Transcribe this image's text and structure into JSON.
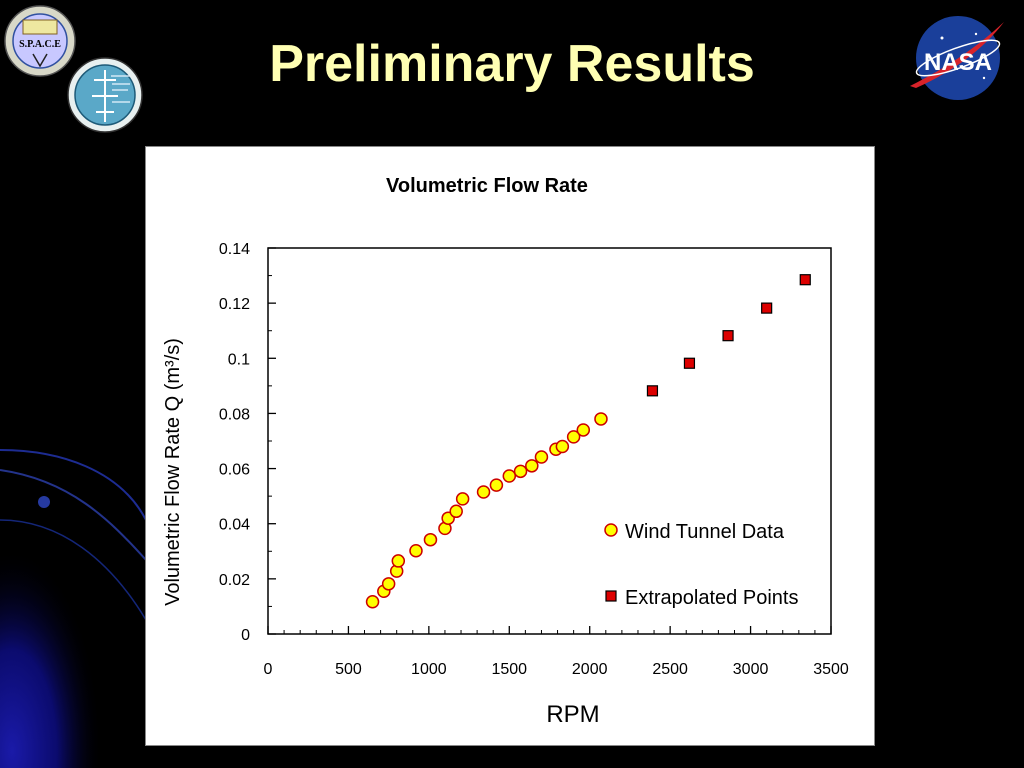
{
  "slide": {
    "title": "Preliminary Results",
    "logos": {
      "space_logo_text": "S.P.A.C.E",
      "nasa_logo_text": "NASA"
    }
  },
  "colors": {
    "background": "#000000",
    "title": "#ffffb3",
    "wind_tunnel_fill": "#ffff00",
    "wind_tunnel_stroke": "#cc0000",
    "extrapolated_fill": "#dd0000",
    "extrapolated_stroke": "#000000"
  },
  "chart_data": {
    "type": "scatter",
    "title": "Volumetric Flow Rate",
    "xlabel": "RPM",
    "ylabel": "Volumetric Flow Rate Q (m³/s)",
    "xlim": [
      0,
      3500
    ],
    "ylim": [
      0,
      0.14
    ],
    "x_ticks": [
      "0",
      "500",
      "1000",
      "1500",
      "2000",
      "2500",
      "3000",
      "3500"
    ],
    "y_ticks": [
      "0",
      "0.02",
      "0.04",
      "0.06",
      "0.08",
      "0.1",
      "0.12",
      "0.14"
    ],
    "grid": false,
    "legend_position": "lower-right",
    "series": [
      {
        "name": "Wind Tunnel Data",
        "marker": "circle",
        "points": [
          [
            650,
            0.0117
          ],
          [
            720,
            0.0155
          ],
          [
            750,
            0.0182
          ],
          [
            800,
            0.0228
          ],
          [
            810,
            0.0265
          ],
          [
            920,
            0.0302
          ],
          [
            1010,
            0.0342
          ],
          [
            1100,
            0.0383
          ],
          [
            1120,
            0.042
          ],
          [
            1170,
            0.0445
          ],
          [
            1210,
            0.049
          ],
          [
            1340,
            0.0515
          ],
          [
            1420,
            0.054
          ],
          [
            1500,
            0.0573
          ],
          [
            1570,
            0.059
          ],
          [
            1640,
            0.061
          ],
          [
            1700,
            0.0642
          ],
          [
            1790,
            0.067
          ],
          [
            1830,
            0.068
          ],
          [
            1900,
            0.0715
          ],
          [
            1960,
            0.074
          ],
          [
            2070,
            0.078
          ]
        ]
      },
      {
        "name": "Extrapolated Points",
        "marker": "square",
        "points": [
          [
            2390,
            0.0882
          ],
          [
            2620,
            0.0982
          ],
          [
            2860,
            0.1082
          ],
          [
            3100,
            0.1182
          ],
          [
            3340,
            0.1285
          ]
        ]
      }
    ]
  }
}
